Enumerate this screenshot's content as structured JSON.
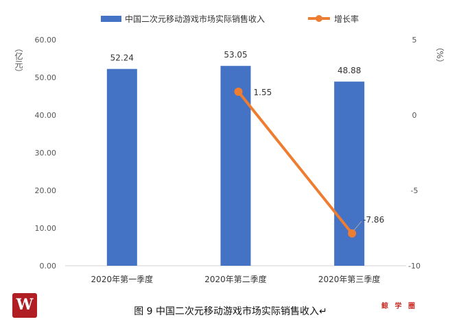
{
  "chart_data": {
    "type": "bar",
    "categories": [
      "2020年第一季度",
      "2020年第二季度",
      "2020年第三季度"
    ],
    "series": [
      {
        "name": "中国二次元移动游戏市场实际销售收入",
        "type": "bar",
        "axis": "left",
        "color": "#4472c4",
        "values": [
          52.24,
          53.05,
          48.88
        ],
        "labels": [
          "52.24",
          "53.05",
          "48.88"
        ]
      },
      {
        "name": "增长率",
        "type": "line",
        "axis": "right",
        "color": "#ed7d31",
        "values": [
          null,
          1.55,
          -7.86
        ],
        "labels": [
          "",
          "1.55",
          "-7.86"
        ]
      }
    ],
    "y_left": {
      "label": "（亿元）",
      "ylim": [
        0,
        60
      ],
      "ticks": [
        "0.00",
        "10.00",
        "20.00",
        "30.00",
        "40.00",
        "50.00",
        "60.00"
      ]
    },
    "y_right": {
      "label": "（%）",
      "ylim": [
        -10,
        5
      ],
      "ticks": [
        "-10",
        "-5",
        "0",
        "5"
      ]
    },
    "legend_position": "top",
    "grid": false
  },
  "caption": "图 9  中国二次元移动游戏市场实际销售收入↵",
  "logo_text": "W",
  "stamp_text": "鲸 学 圈"
}
